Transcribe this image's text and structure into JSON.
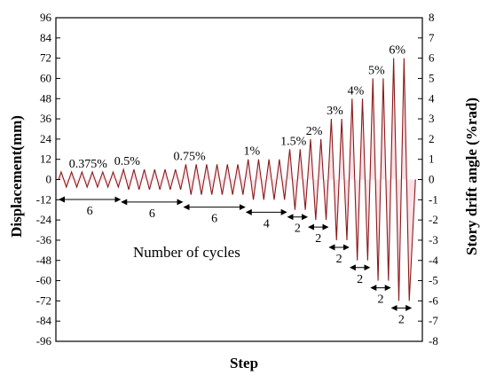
{
  "chart_data": {
    "type": "line",
    "title": "",
    "xlabel": "Step",
    "ylabel": "Displacement(mm)",
    "y2label": "Story drift angle (%rad)",
    "ylim": [
      -96,
      96
    ],
    "y2lim": [
      -8,
      8
    ],
    "yticks": [
      "96",
      "84",
      "72",
      "60",
      "48",
      "36",
      "24",
      "12",
      "0",
      "-12",
      "-24",
      "-36",
      "-48",
      "-60",
      "-72",
      "-84",
      "-96"
    ],
    "y2ticks": [
      "8",
      "7",
      "6",
      "5",
      "4",
      "3",
      "2",
      "1",
      "0",
      "-1",
      "-2",
      "-3",
      "-4",
      "-5",
      "-6",
      "-7",
      "-8"
    ],
    "series_color": "#8b1a1a",
    "fill_color": "#f9c8d4",
    "annotation": "Number of cycles",
    "levels": [
      {
        "drift_label": "0.375%",
        "amplitude_mm": 4.5,
        "cycles": 6,
        "cycle_label": "6"
      },
      {
        "drift_label": "0.5%",
        "amplitude_mm": 6,
        "cycles": 6,
        "cycle_label": "6"
      },
      {
        "drift_label": "0.75%",
        "amplitude_mm": 9,
        "cycles": 6,
        "cycle_label": "6"
      },
      {
        "drift_label": "1%",
        "amplitude_mm": 12,
        "cycles": 4,
        "cycle_label": "4"
      },
      {
        "drift_label": "1.5%",
        "amplitude_mm": 18,
        "cycles": 2,
        "cycle_label": "2"
      },
      {
        "drift_label": "2%",
        "amplitude_mm": 24,
        "cycles": 2,
        "cycle_label": "2"
      },
      {
        "drift_label": "3%",
        "amplitude_mm": 36,
        "cycles": 2,
        "cycle_label": "2"
      },
      {
        "drift_label": "4%",
        "amplitude_mm": 48,
        "cycles": 2,
        "cycle_label": "2"
      },
      {
        "drift_label": "5%",
        "amplitude_mm": 60,
        "cycles": 2,
        "cycle_label": "2"
      },
      {
        "drift_label": "6%",
        "amplitude_mm": 72,
        "cycles": 2,
        "cycle_label": "2"
      }
    ]
  }
}
